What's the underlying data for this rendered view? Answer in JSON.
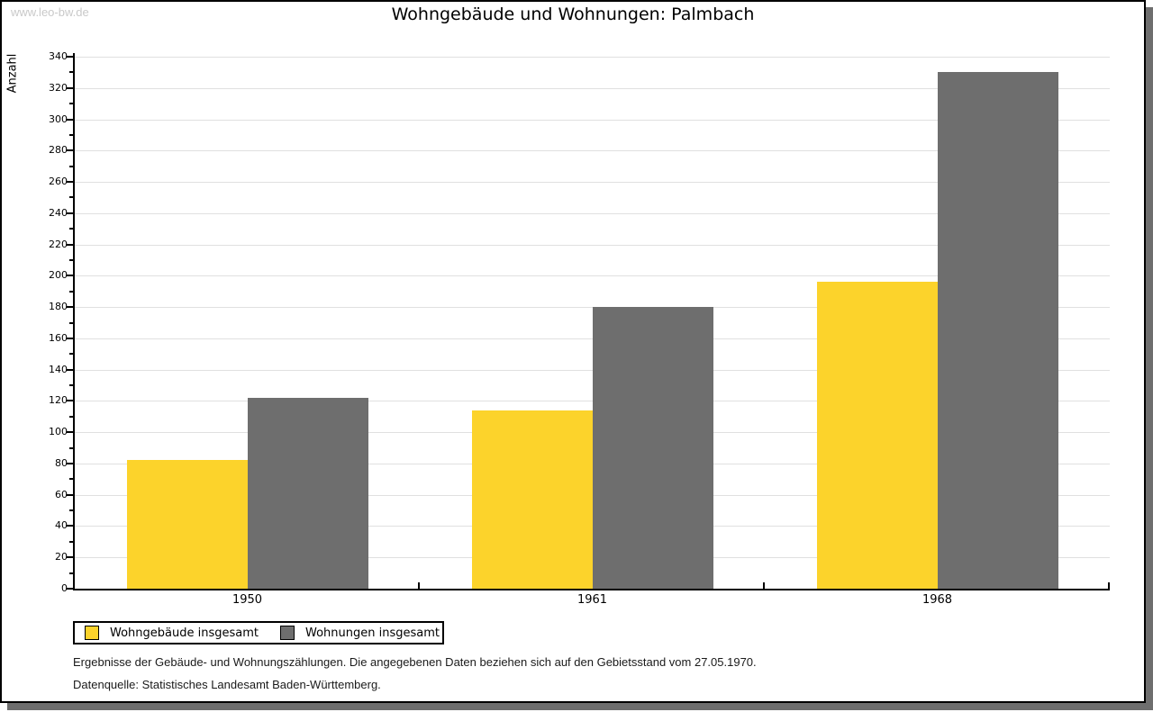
{
  "watermark": "www.leo-bw.de",
  "title": "Wohngebäude und Wohnungen: Palmbach",
  "chart_data": {
    "type": "bar",
    "title": "Wohngebäude und Wohnungen: Palmbach",
    "xlabel": "",
    "ylabel": "Anzahl",
    "categories": [
      "1950",
      "1961",
      "1968"
    ],
    "series": [
      {
        "name": "Wohngebäude insgesamt",
        "color": "#fcd32b",
        "values": [
          82,
          114,
          196
        ]
      },
      {
        "name": "Wohnungen insgesamt",
        "color": "#6e6e6e",
        "values": [
          122,
          180,
          330
        ]
      }
    ],
    "ylim": [
      0,
      340
    ],
    "ytick_step": 20,
    "minor_tick_step": 10,
    "grid": true,
    "legend_position": "bottom-left"
  },
  "footnotes": [
    "Ergebnisse der Gebäude- und Wohnungszählungen. Die angegebenen Daten beziehen sich auf den Gebietsstand vom 27.05.1970.",
    "Datenquelle: Statistisches Landesamt Baden-Württemberg."
  ],
  "colors": {
    "bar_yellow": "#fcd32b",
    "bar_gray": "#6e6e6e",
    "gridline": "#e0e0e0",
    "axis": "#000000",
    "frame_border": "#000000",
    "frame_shadow": "#6e6e6e",
    "watermark": "#c9c9c9",
    "background": "#ffffff"
  }
}
